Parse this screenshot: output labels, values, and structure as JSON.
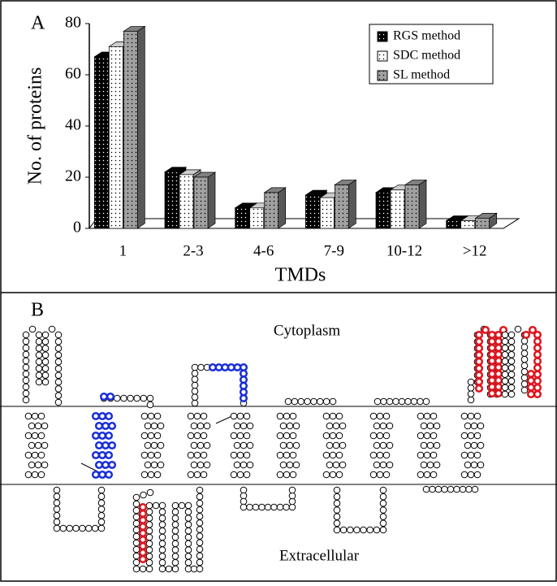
{
  "panel_labels": [
    "A",
    "B"
  ],
  "chart_data": {
    "type": "bar3d",
    "xlabel": "TMDs",
    "ylabel": "No. of proteins",
    "categories": [
      "1",
      "2-3",
      "4-6",
      "7-9",
      "10-12",
      ">12"
    ],
    "series": [
      {
        "name": "RGS method",
        "color": "#000000",
        "values": [
          67,
          22,
          8,
          13,
          14,
          3
        ]
      },
      {
        "name": "SDC method",
        "color": "#ffffff",
        "values": [
          71,
          21,
          8,
          12,
          15,
          3
        ]
      },
      {
        "name": "SL method",
        "color": "#a0a0a0",
        "values": [
          77,
          20,
          14,
          17,
          17,
          4
        ]
      }
    ],
    "ylim": [
      0,
      80
    ],
    "yticks": [
      0,
      20,
      40,
      60,
      80
    ],
    "legend": "upper right"
  },
  "diagram": {
    "regions": [
      "Cytoplasm",
      "Extracellular"
    ]
  }
}
